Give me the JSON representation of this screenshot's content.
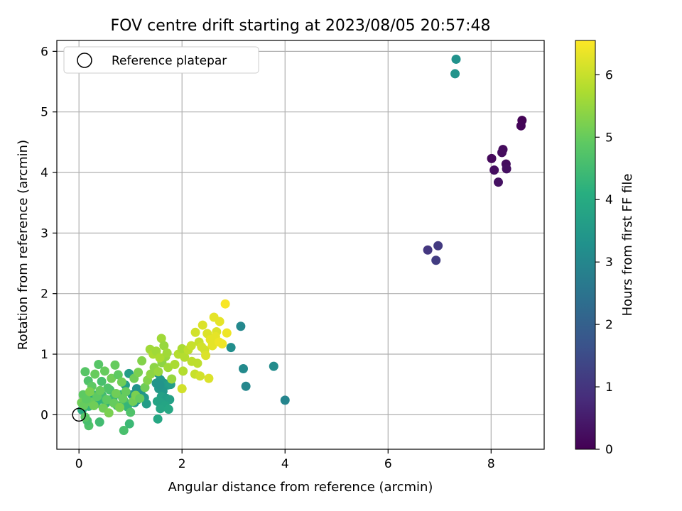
{
  "chart_data": {
    "type": "scatter",
    "title": "FOV centre drift starting at 2023/08/05 20:57:48",
    "xlabel": "Angular distance from reference (arcmin)",
    "ylabel": "Rotation from reference (arcmin)",
    "xlim": [
      -0.43,
      9.03
    ],
    "ylim": [
      -0.57,
      6.18
    ],
    "xticks": [
      0,
      2,
      4,
      6,
      8
    ],
    "yticks": [
      0,
      1,
      2,
      3,
      4,
      5,
      6
    ],
    "grid": true,
    "legend": {
      "placement": "upper-left",
      "entries": [
        "Reference platepar"
      ]
    },
    "reference_point": {
      "x": 0,
      "y": 0
    },
    "colorbar": {
      "label": "Hours from first FF file",
      "range": [
        0,
        6.55
      ],
      "ticks": [
        0,
        1,
        2,
        3,
        4,
        5,
        6
      ],
      "colormap": "viridis"
    },
    "points": [
      {
        "x": 8.6,
        "y": 4.86,
        "c": 0.05
      },
      {
        "x": 8.58,
        "y": 4.77,
        "c": 0.08
      },
      {
        "x": 8.01,
        "y": 4.23,
        "c": 0.15
      },
      {
        "x": 8.23,
        "y": 4.38,
        "c": 0.18
      },
      {
        "x": 8.21,
        "y": 4.33,
        "c": 0.2
      },
      {
        "x": 8.29,
        "y": 4.14,
        "c": 0.22
      },
      {
        "x": 8.06,
        "y": 4.04,
        "c": 0.25
      },
      {
        "x": 8.3,
        "y": 4.06,
        "c": 0.28
      },
      {
        "x": 8.14,
        "y": 3.84,
        "c": 0.3
      },
      {
        "x": 6.77,
        "y": 2.72,
        "c": 1.05
      },
      {
        "x": 6.97,
        "y": 2.79,
        "c": 1.1
      },
      {
        "x": 6.93,
        "y": 2.55,
        "c": 1.15
      },
      {
        "x": 7.32,
        "y": 5.87,
        "c": 3.3
      },
      {
        "x": 7.3,
        "y": 5.63,
        "c": 3.35
      },
      {
        "x": 3.14,
        "y": 1.46,
        "c": 3.05
      },
      {
        "x": 2.95,
        "y": 1.11,
        "c": 3.2
      },
      {
        "x": 3.19,
        "y": 0.76,
        "c": 3.1
      },
      {
        "x": 3.78,
        "y": 0.8,
        "c": 3.15
      },
      {
        "x": 3.24,
        "y": 0.47,
        "c": 3.0
      },
      {
        "x": 4.0,
        "y": 0.24,
        "c": 2.95
      },
      {
        "x": 1.53,
        "y": 0.69,
        "c": 3.4
      },
      {
        "x": 1.58,
        "y": 0.58,
        "c": 3.5
      },
      {
        "x": 1.65,
        "y": 0.52,
        "c": 3.45
      },
      {
        "x": 1.72,
        "y": 0.49,
        "c": 3.55
      },
      {
        "x": 1.78,
        "y": 0.5,
        "c": 3.6
      },
      {
        "x": 1.55,
        "y": 0.43,
        "c": 3.5
      },
      {
        "x": 1.63,
        "y": 0.39,
        "c": 3.45
      },
      {
        "x": 1.6,
        "y": 0.3,
        "c": 3.7
      },
      {
        "x": 1.7,
        "y": 0.27,
        "c": 3.6
      },
      {
        "x": 1.52,
        "y": 0.22,
        "c": 3.8
      },
      {
        "x": 1.59,
        "y": 0.2,
        "c": 3.75
      },
      {
        "x": 1.76,
        "y": 0.25,
        "c": 3.7
      },
      {
        "x": 1.67,
        "y": 0.15,
        "c": 3.8
      },
      {
        "x": 1.58,
        "y": 0.1,
        "c": 3.85
      },
      {
        "x": 1.74,
        "y": 0.09,
        "c": 3.9
      },
      {
        "x": 1.53,
        "y": -0.07,
        "c": 3.9
      },
      {
        "x": 1.5,
        "y": 0.52,
        "c": 3.4
      },
      {
        "x": 1.57,
        "y": 0.49,
        "c": 3.35
      },
      {
        "x": 1.12,
        "y": 0.43,
        "c": 3.3
      },
      {
        "x": 1.2,
        "y": 0.35,
        "c": 3.4
      },
      {
        "x": 1.03,
        "y": 0.33,
        "c": 3.45
      },
      {
        "x": 1.27,
        "y": 0.28,
        "c": 3.5
      },
      {
        "x": 1.14,
        "y": 0.25,
        "c": 3.55
      },
      {
        "x": 1.08,
        "y": 0.2,
        "c": 3.5
      },
      {
        "x": 0.97,
        "y": 0.68,
        "c": 3.6
      },
      {
        "x": 0.9,
        "y": 0.49,
        "c": 3.65
      },
      {
        "x": 1.31,
        "y": 0.18,
        "c": 3.6
      },
      {
        "x": 0.06,
        "y": 0.08,
        "c": 4.0
      },
      {
        "x": 0.11,
        "y": 0.28,
        "c": 4.2
      },
      {
        "x": 0.19,
        "y": 0.14,
        "c": 4.3
      },
      {
        "x": 0.27,
        "y": 0.33,
        "c": 4.1
      },
      {
        "x": 0.33,
        "y": 0.18,
        "c": 4.4
      },
      {
        "x": 0.38,
        "y": 0.25,
        "c": 4.2
      },
      {
        "x": 0.45,
        "y": 0.32,
        "c": 4.5
      },
      {
        "x": 0.52,
        "y": 0.19,
        "c": 4.3
      },
      {
        "x": 0.6,
        "y": 0.41,
        "c": 4.6
      },
      {
        "x": 0.66,
        "y": 0.27,
        "c": 4.4
      },
      {
        "x": 0.74,
        "y": 0.15,
        "c": 4.5
      },
      {
        "x": 0.81,
        "y": 0.33,
        "c": 4.2
      },
      {
        "x": 0.88,
        "y": 0.22,
        "c": 4.6
      },
      {
        "x": 0.94,
        "y": 0.13,
        "c": 4.3
      },
      {
        "x": 1.0,
        "y": 0.04,
        "c": 4.7
      },
      {
        "x": 0.98,
        "y": -0.15,
        "c": 4.4
      },
      {
        "x": 0.87,
        "y": -0.26,
        "c": 4.6
      },
      {
        "x": 0.4,
        "y": -0.12,
        "c": 4.5
      },
      {
        "x": 0.19,
        "y": -0.18,
        "c": 4.7
      },
      {
        "x": 0.16,
        "y": -0.1,
        "c": 4.6
      },
      {
        "x": 0.12,
        "y": -0.04,
        "c": 4.8
      },
      {
        "x": 0.08,
        "y": 0.33,
        "c": 4.9
      },
      {
        "x": 0.12,
        "y": 0.71,
        "c": 4.8
      },
      {
        "x": 0.18,
        "y": 0.56,
        "c": 4.7
      },
      {
        "x": 0.25,
        "y": 0.47,
        "c": 4.9
      },
      {
        "x": 0.31,
        "y": 0.67,
        "c": 5.0
      },
      {
        "x": 0.38,
        "y": 0.83,
        "c": 4.8
      },
      {
        "x": 0.44,
        "y": 0.55,
        "c": 4.6
      },
      {
        "x": 0.5,
        "y": 0.72,
        "c": 5.0
      },
      {
        "x": 0.56,
        "y": 0.44,
        "c": 4.7
      },
      {
        "x": 0.63,
        "y": 0.6,
        "c": 5.1
      },
      {
        "x": 0.7,
        "y": 0.82,
        "c": 5.0
      },
      {
        "x": 0.76,
        "y": 0.66,
        "c": 4.9
      },
      {
        "x": 0.83,
        "y": 0.54,
        "c": 5.1
      },
      {
        "x": 0.91,
        "y": 0.38,
        "c": 5.0
      },
      {
        "x": 1.07,
        "y": 0.6,
        "c": 5.1
      },
      {
        "x": 1.15,
        "y": 0.7,
        "c": 5.2
      },
      {
        "x": 1.22,
        "y": 0.89,
        "c": 5.3
      },
      {
        "x": 1.28,
        "y": 0.45,
        "c": 5.1
      },
      {
        "x": 0.23,
        "y": 0.21,
        "c": 5.0
      },
      {
        "x": 0.29,
        "y": 0.15,
        "c": 5.1
      },
      {
        "x": 0.35,
        "y": 0.3,
        "c": 4.9
      },
      {
        "x": 0.41,
        "y": 0.4,
        "c": 5.0
      },
      {
        "x": 0.47,
        "y": 0.11,
        "c": 5.1
      },
      {
        "x": 0.54,
        "y": 0.25,
        "c": 4.9
      },
      {
        "x": 0.58,
        "y": 0.03,
        "c": 5.2
      },
      {
        "x": 0.68,
        "y": 0.19,
        "c": 5.0
      },
      {
        "x": 0.72,
        "y": 0.35,
        "c": 5.1
      },
      {
        "x": 0.79,
        "y": 0.12,
        "c": 5.2
      },
      {
        "x": 0.85,
        "y": 0.27,
        "c": 5.0
      },
      {
        "x": 1.05,
        "y": 0.22,
        "c": 5.1
      },
      {
        "x": 1.1,
        "y": 0.32,
        "c": 5.2
      },
      {
        "x": 1.18,
        "y": 0.27,
        "c": 5.0
      },
      {
        "x": 0.05,
        "y": 0.2,
        "c": 5.1
      },
      {
        "x": 0.09,
        "y": 0.15,
        "c": 5.0
      },
      {
        "x": 0.14,
        "y": 0.26,
        "c": 4.9
      },
      {
        "x": 0.21,
        "y": 0.38,
        "c": 5.2
      },
      {
        "x": 1.33,
        "y": 0.57,
        "c": 5.3
      },
      {
        "x": 1.39,
        "y": 0.67,
        "c": 5.4
      },
      {
        "x": 1.46,
        "y": 0.78,
        "c": 5.4
      },
      {
        "x": 1.54,
        "y": 0.71,
        "c": 5.5
      },
      {
        "x": 1.61,
        "y": 0.86,
        "c": 5.4
      },
      {
        "x": 1.68,
        "y": 0.96,
        "c": 5.5
      },
      {
        "x": 1.73,
        "y": 0.78,
        "c": 5.6
      },
      {
        "x": 1.8,
        "y": 0.59,
        "c": 5.5
      },
      {
        "x": 1.6,
        "y": 1.26,
        "c": 5.6
      },
      {
        "x": 1.65,
        "y": 1.14,
        "c": 5.5
      },
      {
        "x": 1.38,
        "y": 1.08,
        "c": 5.6
      },
      {
        "x": 1.44,
        "y": 1.0,
        "c": 5.7
      },
      {
        "x": 1.5,
        "y": 1.05,
        "c": 5.6
      },
      {
        "x": 1.57,
        "y": 0.94,
        "c": 5.7
      },
      {
        "x": 1.71,
        "y": 1.02,
        "c": 5.6
      },
      {
        "x": 1.86,
        "y": 0.83,
        "c": 5.7
      },
      {
        "x": 1.93,
        "y": 1.0,
        "c": 5.8
      },
      {
        "x": 2.0,
        "y": 1.09,
        "c": 5.7
      },
      {
        "x": 2.05,
        "y": 0.95,
        "c": 5.8
      },
      {
        "x": 2.12,
        "y": 1.07,
        "c": 5.9
      },
      {
        "x": 2.02,
        "y": 0.72,
        "c": 5.8
      },
      {
        "x": 2.19,
        "y": 0.88,
        "c": 5.9
      },
      {
        "x": 2.25,
        "y": 0.67,
        "c": 6.0
      },
      {
        "x": 2.3,
        "y": 0.85,
        "c": 5.9
      },
      {
        "x": 2.35,
        "y": 0.64,
        "c": 6.1
      },
      {
        "x": 2.18,
        "y": 1.14,
        "c": 6.0
      },
      {
        "x": 2.26,
        "y": 1.36,
        "c": 6.1
      },
      {
        "x": 2.33,
        "y": 1.2,
        "c": 6.0
      },
      {
        "x": 2.4,
        "y": 1.48,
        "c": 6.2
      },
      {
        "x": 2.44,
        "y": 1.07,
        "c": 6.1
      },
      {
        "x": 2.49,
        "y": 1.34,
        "c": 6.2
      },
      {
        "x": 2.55,
        "y": 1.24,
        "c": 6.3
      },
      {
        "x": 2.62,
        "y": 1.61,
        "c": 6.3
      },
      {
        "x": 2.67,
        "y": 1.37,
        "c": 6.2
      },
      {
        "x": 2.73,
        "y": 1.54,
        "c": 6.3
      },
      {
        "x": 2.78,
        "y": 1.17,
        "c": 6.4
      },
      {
        "x": 2.84,
        "y": 1.83,
        "c": 6.5
      },
      {
        "x": 2.87,
        "y": 1.35,
        "c": 6.4
      },
      {
        "x": 2.59,
        "y": 1.14,
        "c": 6.3
      },
      {
        "x": 2.52,
        "y": 0.6,
        "c": 6.2
      },
      {
        "x": 2.0,
        "y": 0.43,
        "c": 6.1
      },
      {
        "x": 2.46,
        "y": 0.98,
        "c": 6.2
      },
      {
        "x": 2.38,
        "y": 1.12,
        "c": 6.1
      },
      {
        "x": 2.65,
        "y": 1.29,
        "c": 6.3
      },
      {
        "x": 2.72,
        "y": 1.2,
        "c": 6.4
      }
    ]
  }
}
